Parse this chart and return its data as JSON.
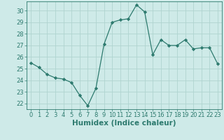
{
  "x": [
    0,
    1,
    2,
    3,
    4,
    5,
    6,
    7,
    8,
    9,
    10,
    11,
    12,
    13,
    14,
    15,
    16,
    17,
    18,
    19,
    20,
    21,
    22,
    23
  ],
  "y": [
    25.5,
    25.1,
    24.5,
    24.2,
    24.1,
    23.8,
    22.7,
    21.8,
    23.3,
    27.1,
    29.0,
    29.2,
    29.3,
    30.5,
    29.9,
    26.2,
    27.5,
    27.0,
    27.0,
    27.5,
    26.7,
    26.8,
    26.8,
    25.4
  ],
  "line_color": "#2d7a6e",
  "marker": "D",
  "marker_size": 2.2,
  "bg_color": "#ceeae8",
  "grid_color": "#afd4d0",
  "tick_color": "#2d7a6e",
  "xlabel": "Humidex (Indice chaleur)",
  "xlim": [
    -0.5,
    23.5
  ],
  "ylim": [
    21.5,
    30.8
  ],
  "yticks": [
    22,
    23,
    24,
    25,
    26,
    27,
    28,
    29,
    30
  ],
  "xticks": [
    0,
    1,
    2,
    3,
    4,
    5,
    6,
    7,
    8,
    9,
    10,
    11,
    12,
    13,
    14,
    15,
    16,
    17,
    18,
    19,
    20,
    21,
    22,
    23
  ],
  "tick_font_size": 6.0,
  "label_font_size": 7.5
}
